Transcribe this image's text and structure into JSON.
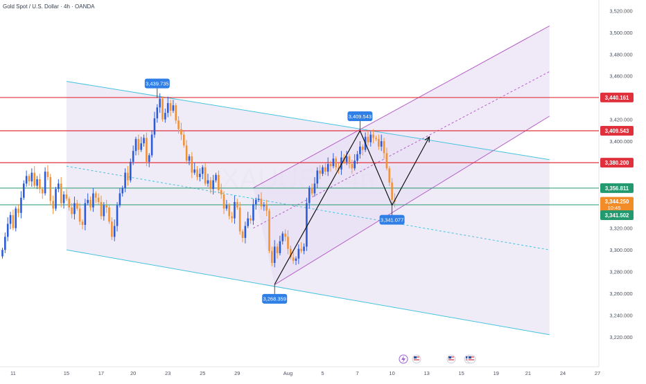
{
  "header": {
    "title": "Gold Spot / U.S. Dollar · 4h · OANDA"
  },
  "watermark": "XAUUSD 4h",
  "colors": {
    "up": "#2d5bd8",
    "down": "#f0923a",
    "hline": "#e0303c",
    "green_line": "#22996e",
    "channel_cyan": "#45c3df",
    "channel_purple": "#b45ec8",
    "callout": "#2f7fe6",
    "badge_red": "#e0303c",
    "badge_green": "#22996e",
    "badge_orange": "#f28c28"
  },
  "chart_data": {
    "type": "candlestick",
    "symbol": "XAUUSD",
    "timeframe": "4h",
    "ylim": [
      3210,
      3525
    ],
    "y_ticks": [
      3220,
      3240,
      3260,
      3280,
      3300,
      3320,
      3340,
      3360,
      3380,
      3400,
      3420,
      3440,
      3460,
      3480,
      3500,
      3520
    ],
    "y_tick_labels": [
      "3,220.000",
      "3,240.000",
      "3,260.000",
      "3,280.000",
      "3,300.000",
      "3,320.000",
      "3,340.000",
      "3,360.000",
      "3,380.000",
      "3,400.000",
      "3,420.000",
      "3,440.000",
      "3,460.000",
      "3,480.000",
      "3,500.000",
      "3,520.000"
    ],
    "x_ticks": [
      {
        "label": "11",
        "bar": 4
      },
      {
        "label": "15",
        "bar": 24
      },
      {
        "label": "17",
        "bar": 37
      },
      {
        "label": "20",
        "bar": 49
      },
      {
        "label": "23",
        "bar": 62
      },
      {
        "label": "25",
        "bar": 75
      },
      {
        "label": "29",
        "bar": 88
      },
      {
        "label": "Aug",
        "bar": 107
      },
      {
        "label": "5",
        "bar": 120
      },
      {
        "label": "7",
        "bar": 133
      },
      {
        "label": "10",
        "bar": 146
      },
      {
        "label": "13",
        "bar": 159
      },
      {
        "label": "15",
        "bar": 172
      },
      {
        "label": "19",
        "bar": 185
      },
      {
        "label": "21",
        "bar": 197
      },
      {
        "label": "24",
        "bar": 210
      },
      {
        "label": "27",
        "bar": 223
      }
    ],
    "closes": [
      3300,
      3312,
      3324,
      3332,
      3320,
      3338,
      3334,
      3348,
      3361,
      3368,
      3363,
      3371,
      3359,
      3365,
      3356,
      3352,
      3372,
      3367,
      3345,
      3338,
      3356,
      3361,
      3343,
      3351,
      3347,
      3339,
      3333,
      3343,
      3338,
      3326,
      3323,
      3343,
      3346,
      3339,
      3352,
      3348,
      3344,
      3331,
      3341,
      3339,
      3326,
      3312,
      3322,
      3341,
      3352,
      3357,
      3371,
      3364,
      3381,
      3391,
      3402,
      3392,
      3398,
      3403,
      3381,
      3387,
      3406,
      3421,
      3431,
      3439,
      3420,
      3426,
      3435,
      3428,
      3433,
      3419,
      3411,
      3406,
      3396,
      3382,
      3386,
      3371,
      3374,
      3367,
      3370,
      3376,
      3361,
      3364,
      3356,
      3364,
      3369,
      3355,
      3351,
      3338,
      3341,
      3331,
      3329,
      3344,
      3339,
      3317,
      3311,
      3322,
      3329,
      3327,
      3342,
      3346,
      3347,
      3340,
      3341,
      3336,
      3299,
      3288,
      3303,
      3297,
      3308,
      3315,
      3312,
      3301,
      3293,
      3290,
      3292,
      3301,
      3299,
      3303,
      3343,
      3357,
      3352,
      3361,
      3373,
      3370,
      3376,
      3372,
      3379,
      3377,
      3384,
      3376,
      3374,
      3385,
      3381,
      3386,
      3379,
      3375,
      3382,
      3388,
      3395,
      3392,
      3404,
      3399,
      3406,
      3403,
      3402,
      3395,
      3400,
      3389,
      3375,
      3362,
      3346,
      3344.25
    ],
    "price_lines": [
      {
        "value": 3440.161,
        "label": "3,440.161",
        "color": "red"
      },
      {
        "value": 3409.543,
        "label": "3,409.543",
        "color": "red"
      },
      {
        "value": 3380.2,
        "label": "3,380.200",
        "color": "red"
      },
      {
        "value": 3356.811,
        "label": "3,356.811",
        "color": "green"
      },
      {
        "value": 3341.502,
        "label": "3,341.502",
        "color": "green"
      }
    ],
    "current_price": {
      "value": 3344.25,
      "label": "3,344.250",
      "countdown": "10:45"
    },
    "callouts": [
      {
        "label": "3,439.735",
        "bar": 58,
        "value": 3439.735,
        "side": "above"
      },
      {
        "label": "3,409.543",
        "bar": 134,
        "value": 3409.543,
        "side": "above"
      },
      {
        "label": "3,268.359",
        "bar": 102,
        "value": 3268.359,
        "side": "below"
      },
      {
        "label": "3,341.077",
        "bar": 146,
        "value": 3341.077,
        "side": "below"
      }
    ],
    "descending_channel": {
      "upper": [
        [
          24,
          3455
        ],
        [
          205,
          3383
        ]
      ],
      "middle": [
        [
          24,
          3377
        ],
        [
          205,
          3300
        ]
      ],
      "lower": [
        [
          24,
          3300
        ],
        [
          205,
          3222
        ]
      ]
    },
    "ascending_channel": {
      "lower": [
        [
          102,
          3268
        ],
        [
          205,
          3423
        ]
      ],
      "middle": [
        [
          94,
          3320
        ],
        [
          205,
          3464
        ]
      ],
      "upper": [
        [
          94,
          3357
        ],
        [
          205,
          3506
        ]
      ]
    },
    "projection_path": [
      [
        102,
        3268.359
      ],
      [
        134,
        3409.543
      ],
      [
        146,
        3341.077
      ],
      [
        160,
        3404
      ]
    ]
  }
}
